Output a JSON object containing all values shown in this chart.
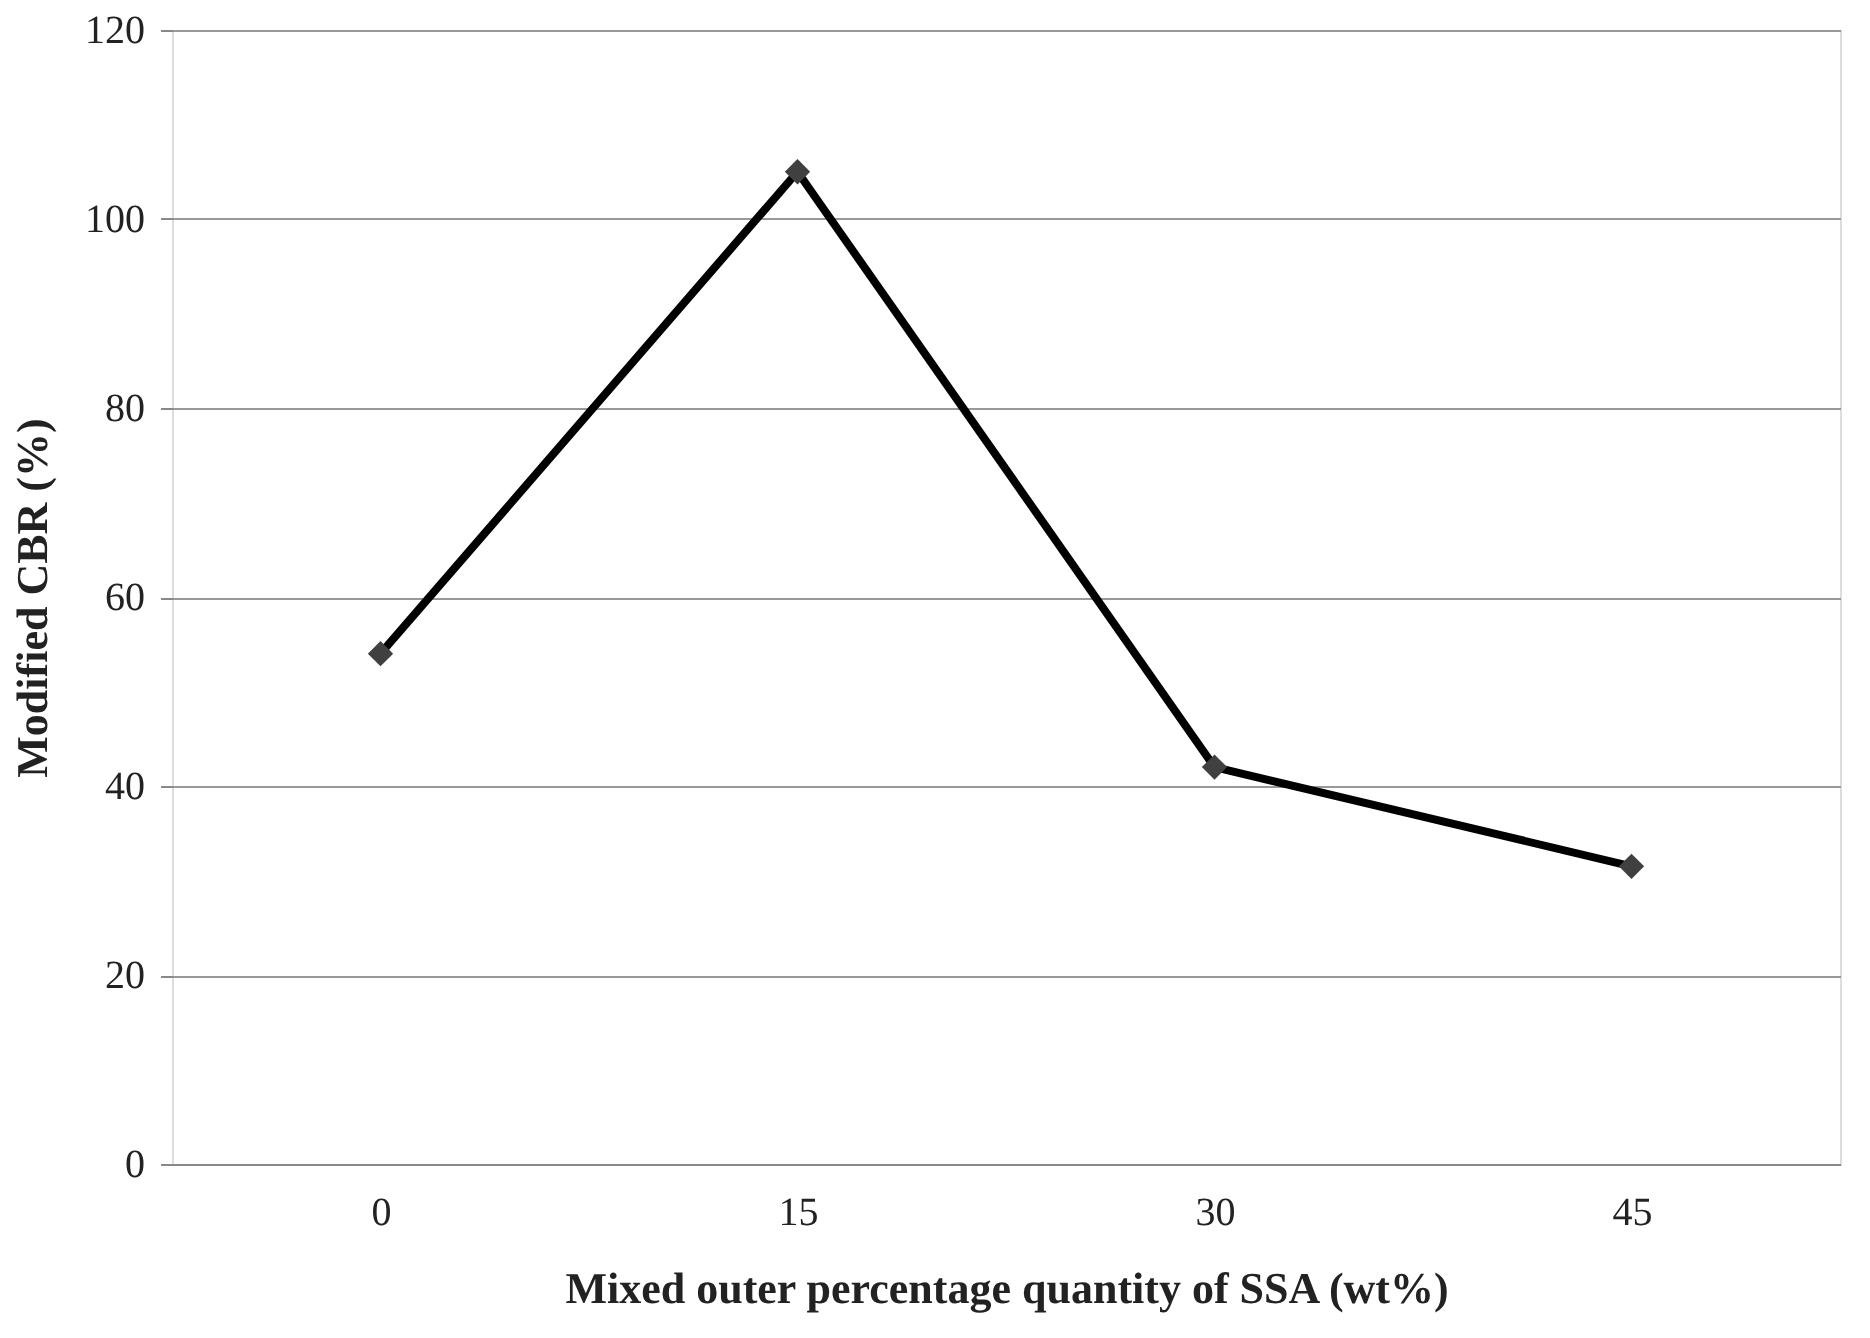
{
  "chart_data": {
    "type": "line",
    "xlabel": "Mixed outer percentage quantity of SSA (wt%)",
    "ylabel": "Modified CBR (%)",
    "categories": [
      "0",
      "15",
      "30",
      "45"
    ],
    "series": [
      {
        "color": "#000000",
        "values": [
          54,
          105,
          42,
          31.5
        ]
      }
    ],
    "ylim": [
      0,
      120
    ],
    "yticks": [
      0,
      20,
      40,
      60,
      80,
      100,
      120
    ],
    "grid": "y",
    "marker": "diamond",
    "line_style": "solid"
  }
}
